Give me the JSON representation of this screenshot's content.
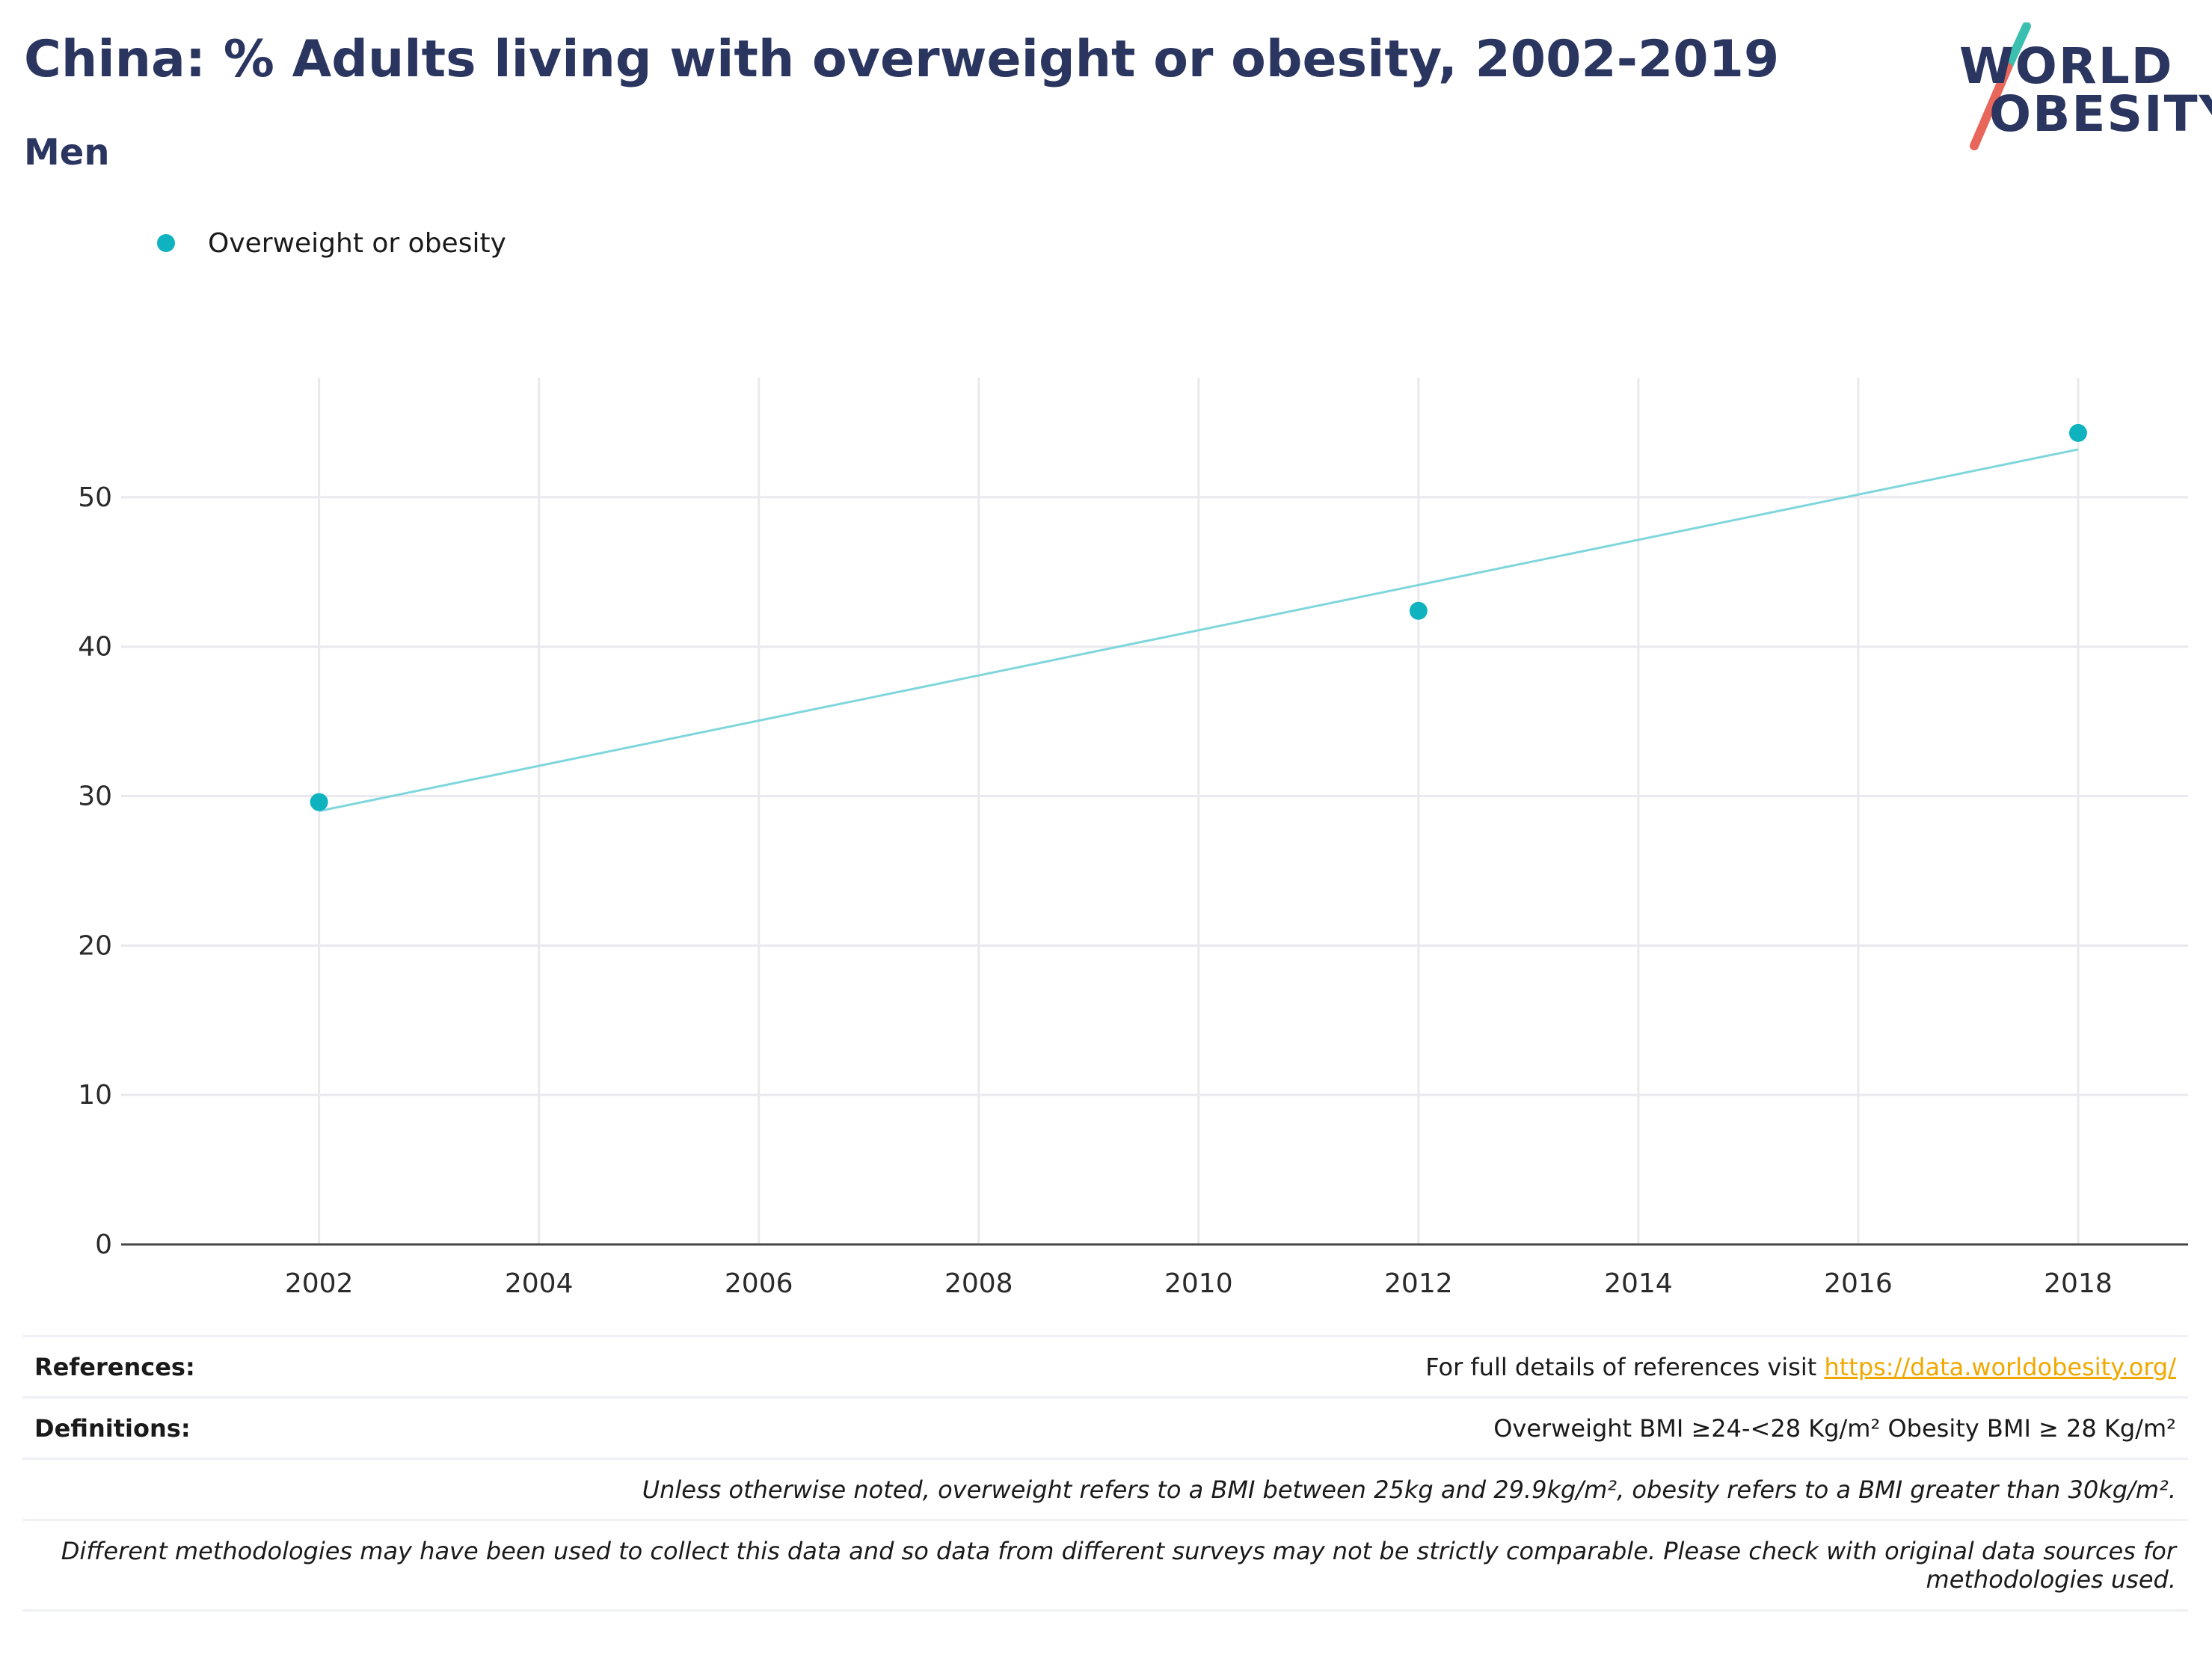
{
  "title": "China: % Adults living with overweight or obesity, 2002-2019",
  "subtitle": "Men",
  "logo": {
    "line1": "WORLD",
    "line2": "OBESITY"
  },
  "legend": {
    "label": "Overweight or obesity"
  },
  "colors": {
    "points": "#0fb3bf",
    "trend": "#7fd6dc",
    "title": "#2a3560",
    "link": "#f0a800",
    "logo_teal": "#3bbfb0",
    "logo_red": "#e8665a"
  },
  "chart_data": {
    "type": "scatter",
    "series": [
      {
        "name": "Overweight or obesity",
        "x": [
          2002,
          2012,
          2018
        ],
        "y": [
          29.6,
          42.4,
          54.3
        ]
      }
    ],
    "trendline": {
      "x": [
        2002,
        2018
      ],
      "y": [
        29.0,
        53.2
      ]
    },
    "xlim": [
      2000.2,
      2019.0
    ],
    "ylim": [
      0,
      58
    ],
    "xticks": [
      2002,
      2004,
      2006,
      2008,
      2010,
      2012,
      2014,
      2016,
      2018
    ],
    "yticks": [
      0,
      10,
      20,
      30,
      40,
      50
    ],
    "xlabel": "",
    "ylabel": "",
    "grid": true,
    "legend_position": "top-left"
  },
  "footer": {
    "references_label": "References:",
    "references_text": "For full details of references visit ",
    "references_link": "https://data.worldobesity.org/",
    "definitions_label": "Definitions:",
    "definitions_text": "Overweight BMI ≥24-<28 Kg/m² Obesity BMI ≥ 28 Kg/m²",
    "note1": "Unless otherwise noted, overweight refers to a BMI between 25kg and 29.9kg/m², obesity refers to a BMI greater than 30kg/m².",
    "note2_line1": "Different methodologies may have been used to collect this data and so data from different surveys may not be strictly comparable. Please check with original data sources for",
    "note2_line2": "methodologies used."
  }
}
